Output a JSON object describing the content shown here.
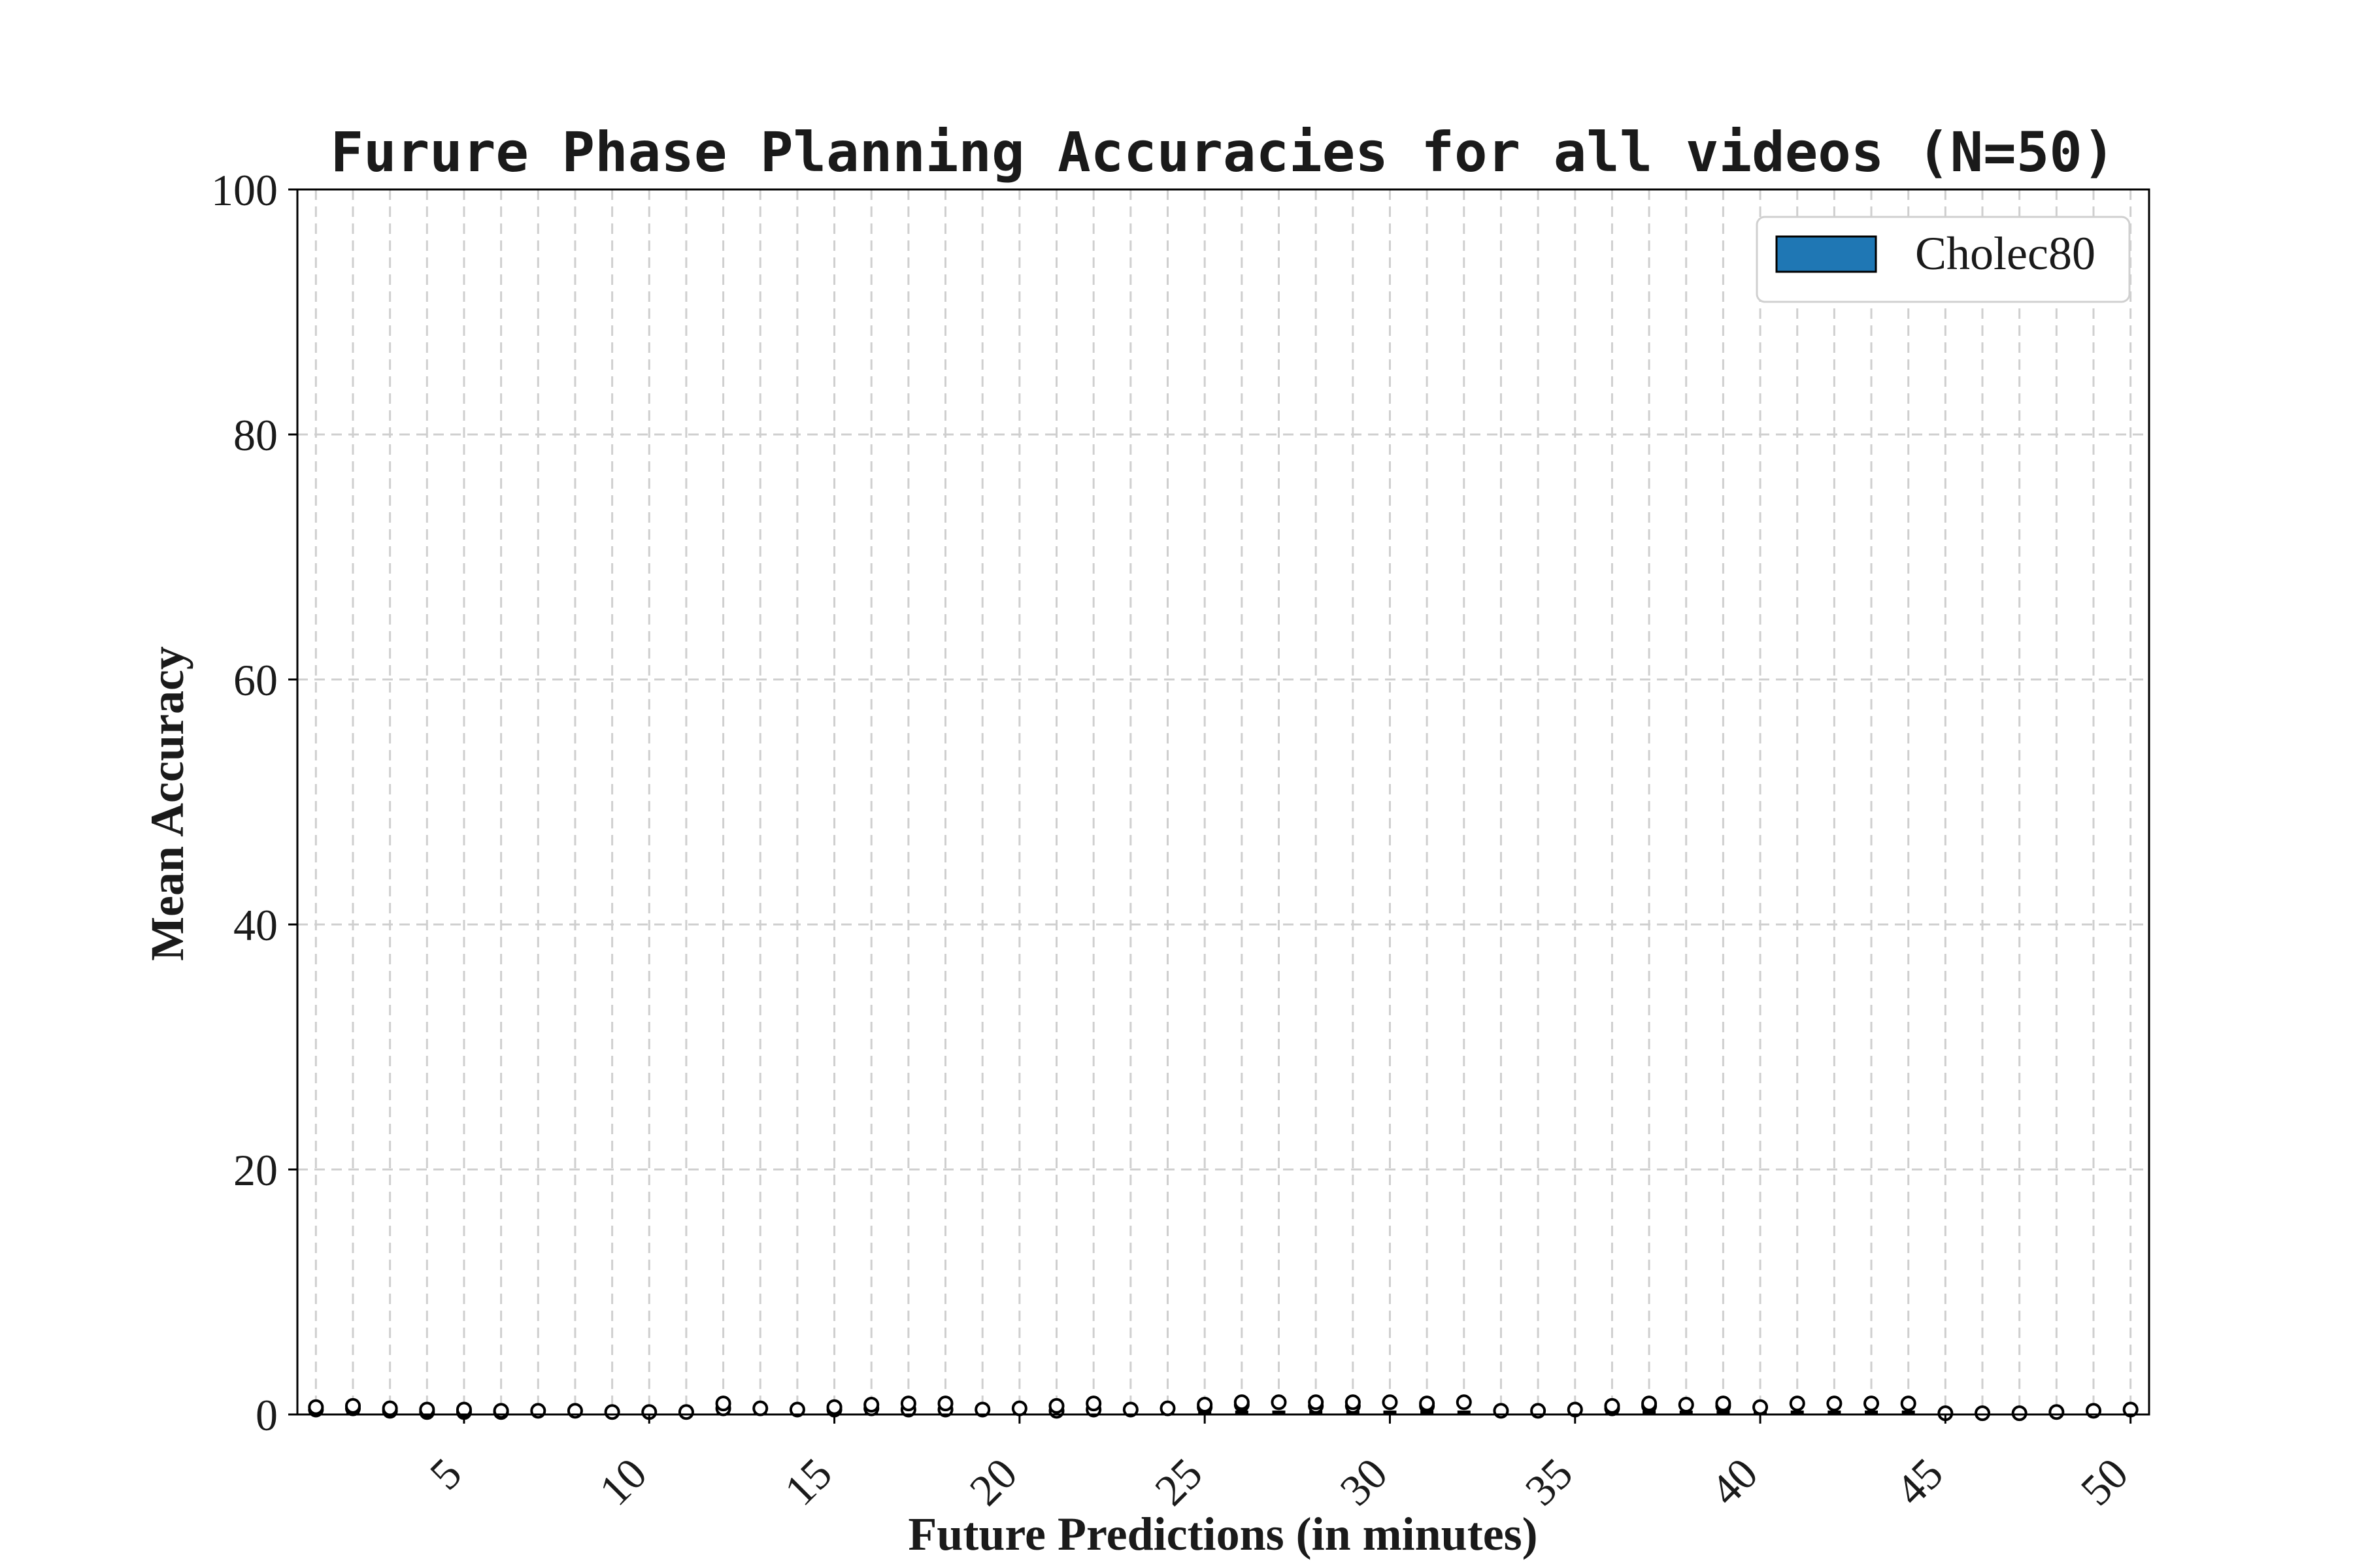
{
  "chart_data": {
    "type": "box",
    "title": "Furure Phase Planning Accuracies for all videos (N=50)",
    "xlabel": "Future Predictions (in minutes)",
    "ylabel": "Mean Accuracy",
    "ylim": [
      0,
      100
    ],
    "xlim": [
      0.5,
      50.5
    ],
    "y_ticks": [
      0,
      20,
      40,
      60,
      80,
      100
    ],
    "x_ticks": [
      5,
      10,
      15,
      20,
      25,
      30,
      35,
      40,
      45,
      50
    ],
    "grid": true,
    "legend": {
      "position": "top-right",
      "entries": [
        "Cholec80"
      ]
    },
    "box_color": "#1f77b4",
    "series": [
      {
        "name": "Cholec80",
        "x": [
          1,
          2,
          3,
          4,
          5,
          6,
          7,
          8,
          9,
          10,
          11,
          12,
          13,
          14,
          15,
          16,
          17,
          18,
          19,
          20,
          21,
          22,
          23,
          24,
          25,
          26,
          27,
          28,
          29,
          30,
          31,
          32,
          33,
          34,
          35,
          36,
          37,
          38,
          39,
          40,
          41,
          42,
          43,
          44,
          45,
          46,
          47,
          48,
          49,
          50
        ],
        "outliers": [
          [
            0.4,
            0.6
          ],
          [
            0.5,
            0.7
          ],
          [
            0.3,
            0.5
          ],
          [
            0.2,
            0.4
          ],
          [
            0.2,
            0.4
          ],
          [
            0.2,
            0.3
          ],
          [
            0.3
          ],
          [
            0.3
          ],
          [
            0.2
          ],
          [
            0.2
          ],
          [
            0.2
          ],
          [
            0.5,
            0.9
          ],
          [
            0.5
          ],
          [
            0.4
          ],
          [
            0.4,
            0.6
          ],
          [
            0.5,
            0.8
          ],
          [
            0.4,
            0.9
          ],
          [
            0.4,
            0.9
          ],
          [
            0.4
          ],
          [
            0.5
          ],
          [
            0.3,
            0.7
          ],
          [
            0.4,
            0.9
          ],
          [
            0.4
          ],
          [
            0.5
          ],
          [
            0.6,
            0.8
          ],
          [
            0.8,
            1.0
          ],
          [
            1.0
          ],
          [
            0.7,
            1.0
          ],
          [
            0.7,
            1.0
          ],
          [
            1.0
          ],
          [
            0.7,
            0.9
          ],
          [
            1.0
          ],
          [
            0.3
          ],
          [
            0.3
          ],
          [
            0.4
          ],
          [
            0.5,
            0.7
          ],
          [
            0.7,
            0.9
          ],
          [
            0.8
          ],
          [
            0.7,
            0.9
          ],
          [
            0.6
          ],
          [
            0.9
          ],
          [
            0.9
          ],
          [
            0.9
          ],
          [
            0.9
          ],
          [
            0.1
          ],
          [
            0.1
          ],
          [
            0.1
          ],
          [
            0.2
          ],
          [
            0.3
          ],
          [
            0.4
          ]
        ]
      }
    ]
  }
}
